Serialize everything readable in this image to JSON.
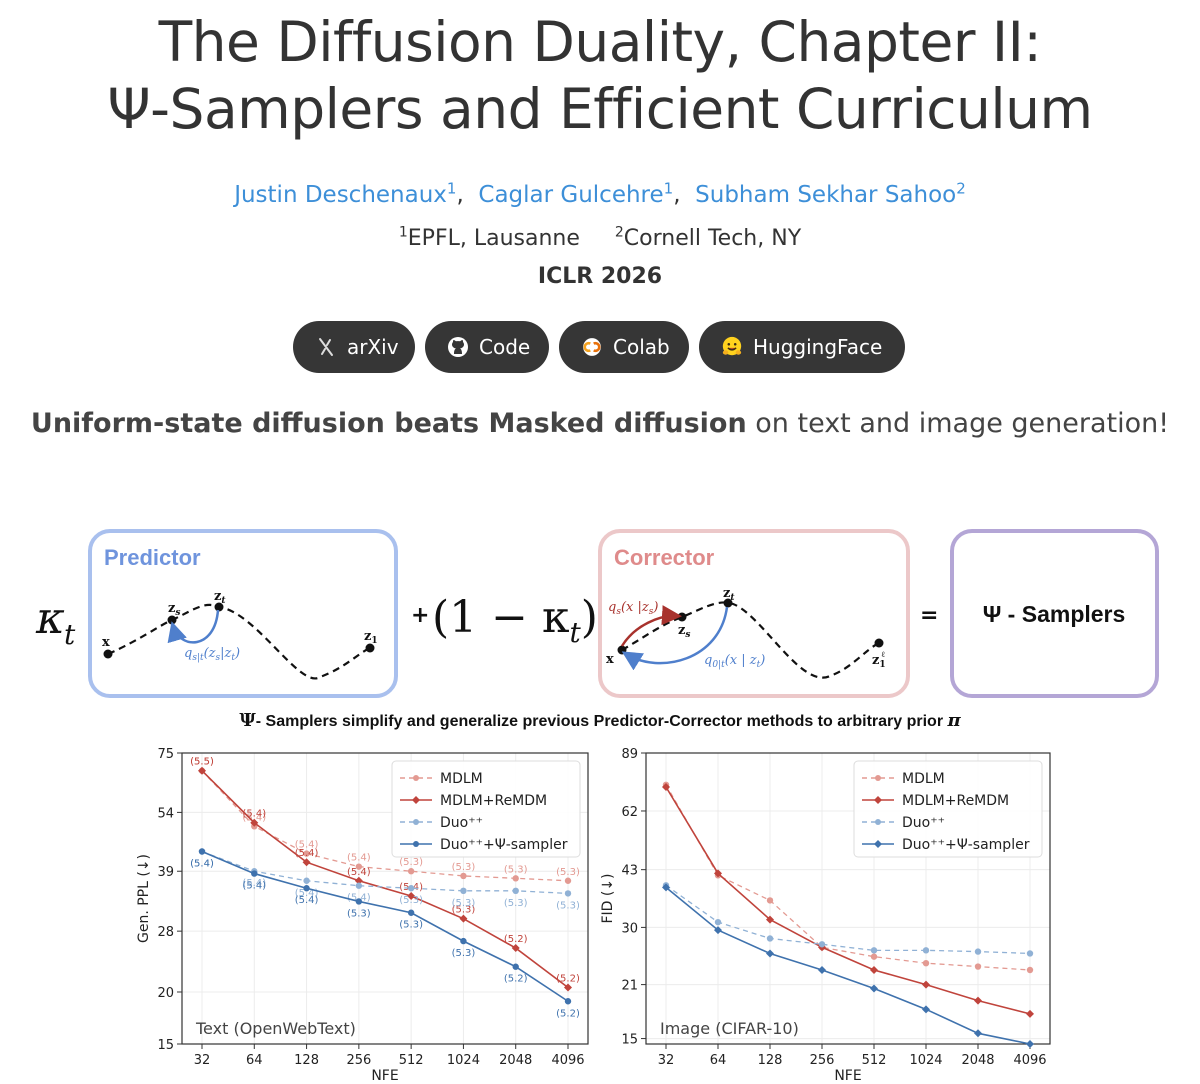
{
  "title": {
    "line1": "The Diffusion Duality, Chapter II:",
    "line2": "Ψ-Samplers and Efficient Curriculum"
  },
  "authors": [
    {
      "name": "Justin Deschenaux",
      "affil": "1"
    },
    {
      "name": "Caglar Gulcehre",
      "affil": "1"
    },
    {
      "name": "Subham Sekhar Sahoo",
      "affil": "2"
    }
  ],
  "affiliations": [
    {
      "num": "1",
      "name": "EPFL, Lausanne"
    },
    {
      "num": "2",
      "name": "Cornell Tech, NY"
    }
  ],
  "venue": "ICLR 2026",
  "buttons": [
    {
      "label": "arXiv",
      "icon": "arxiv-icon"
    },
    {
      "label": "Code",
      "icon": "github-icon"
    },
    {
      "label": "Colab",
      "icon": "colab-icon"
    },
    {
      "label": "HuggingFace",
      "icon": "huggingface-icon"
    }
  ],
  "tagline": {
    "bold": "Uniform-state diffusion beats Masked diffusion",
    "rest": " on text and image generation!"
  },
  "diagram": {
    "predictor_label": "Predictor",
    "corrector_label": "Corrector",
    "result_label": "Ψ - Samplers",
    "kappa": "κ",
    "kappa_sub": "t",
    "plus": "+",
    "equals": "=",
    "one_minus": "(1 − κ",
    "one_minus_close": ")",
    "colors": {
      "predictor": "#a9c0ee",
      "corrector": "#ecc8c9",
      "result": "#b4a6d6",
      "predictor_text": "#6f94dd",
      "corrector_text": "#df8b8b"
    },
    "caption_prefix": "Ψ",
    "caption": "- Samplers simplify and generalize previous Predictor-Corrector methods to arbitrary prior ",
    "caption_pi": "π",
    "pred_nodes": {
      "x": "x",
      "zs": "z",
      "zs_sub": "s",
      "zt": "z",
      "zt_sub": "t",
      "z1": "z",
      "z1_sub": "1"
    },
    "pred_arrow": "q",
    "pred_arrow_sub": "s|t",
    "pred_arrow_args": "(z",
    "pred_arrow_args_sub1": "s",
    "pred_arrow_args_mid": "|z",
    "pred_arrow_args_sub2": "t",
    "pred_arrow_args_end": ")",
    "corr_nodes": {
      "x": "x",
      "zs": "z",
      "zs_sub": "s",
      "zt": "z",
      "zt_sub": "t",
      "z1": "z",
      "z1_sub": "1",
      "z1_sup": "ℓ"
    },
    "corr_arrow1": "q",
    "corr_arrow1_sub": "s",
    "corr_arrow1_args": "(x |z",
    "corr_arrow1_args_sub": "s",
    "corr_arrow1_args_end": ")",
    "corr_arrow2": "q",
    "corr_arrow2_sub": "0|t",
    "corr_arrow2_args": "(x | z",
    "corr_arrow2_args_sub": "t",
    "corr_arrow2_args_end": ")"
  },
  "chart_data": [
    {
      "type": "line",
      "annotation": "Text (OpenWebText)",
      "xlabel": "NFE",
      "ylabel": "Gen. PPL (↓)",
      "x_log2": true,
      "categories": [
        "32",
        "64",
        "128",
        "256",
        "512",
        "1024",
        "2048",
        "4096"
      ],
      "y_log": true,
      "yticks": [
        15,
        20,
        28,
        39,
        54,
        75
      ],
      "ylim": [
        15,
        75
      ],
      "legend_position": "top-right",
      "series": [
        {
          "name": "MDLM",
          "color": "#e39a92",
          "dashed": true,
          "marker": "circle",
          "values": [
            68,
            50,
            43,
            40,
            39,
            38,
            37.5,
            37
          ],
          "labels": [
            "(5.5)",
            "(5.4)",
            "(5.4)",
            "(5.4)",
            "(5.3)",
            "(5.3)",
            "(5.3)",
            "(5.3)"
          ]
        },
        {
          "name": "MDLM+ReMDM",
          "color": "#c0443c",
          "dashed": false,
          "marker": "diamond",
          "values": [
            68,
            51,
            41,
            37,
            34,
            30,
            25.5,
            20.5
          ],
          "labels": [
            "(5.5)",
            "(5.4)",
            "(5.4)",
            "(5.4)",
            "(5.4)",
            "(5.3)",
            "(5.2)",
            "(5.2)"
          ]
        },
        {
          "name": "Duo⁺⁺",
          "color": "#90b1d5",
          "dashed": true,
          "marker": "circle",
          "values": [
            43.5,
            39,
            37,
            36,
            35.5,
            35,
            35,
            34.5
          ],
          "labels": [
            "(5.4)",
            "(5.4)",
            "(5.4)",
            "(5.4)",
            "(5.3)",
            "(5.3)",
            "(5.3)",
            "(5.3)"
          ]
        },
        {
          "name": "Duo⁺⁺+Ψ-sampler",
          "color": "#3f72ad",
          "dashed": false,
          "marker": "circle",
          "values": [
            43.5,
            38.5,
            35.5,
            33,
            31,
            26.5,
            23,
            19
          ],
          "labels": [
            "(5.4)",
            "(5.4)",
            "(5.4)",
            "(5.3)",
            "(5.3)",
            "(5.3)",
            "(5.2)",
            "(5.2)"
          ]
        }
      ]
    },
    {
      "type": "line",
      "annotation": "Image (CIFAR-10)",
      "xlabel": "NFE",
      "ylabel": "FID (↓)",
      "x_log2": true,
      "categories": [
        "32",
        "64",
        "128",
        "256",
        "512",
        "1024",
        "2048",
        "4096"
      ],
      "y_log": true,
      "yticks": [
        15,
        21,
        30,
        43,
        62,
        89
      ],
      "ylim": [
        14.5,
        89
      ],
      "legend_position": "top-right",
      "series": [
        {
          "name": "MDLM",
          "color": "#e39a92",
          "dashed": true,
          "marker": "circle",
          "values": [
            73,
            41.5,
            35.5,
            26.5,
            25,
            24,
            23.5,
            23
          ]
        },
        {
          "name": "MDLM+ReMDM",
          "color": "#c0443c",
          "dashed": false,
          "marker": "diamond",
          "values": [
            72,
            42,
            31.5,
            26.5,
            23,
            21,
            19,
            17.5
          ]
        },
        {
          "name": "Duo⁺⁺",
          "color": "#90b1d5",
          "dashed": true,
          "marker": "circle",
          "values": [
            39,
            31,
            28,
            27,
            26,
            26,
            25.8,
            25.5
          ]
        },
        {
          "name": "Duo⁺⁺+Ψ-sampler",
          "color": "#3f72ad",
          "dashed": false,
          "marker": "diamond",
          "values": [
            38.5,
            29.5,
            25.5,
            23,
            20.5,
            18,
            15.5,
            14.5
          ]
        }
      ]
    }
  ]
}
